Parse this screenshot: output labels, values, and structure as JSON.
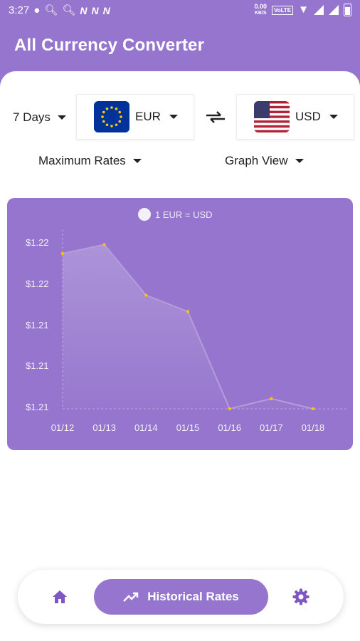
{
  "status_bar": {
    "time": "3:27",
    "net_speed_value": "0.00",
    "net_speed_unit": "KB/S",
    "volte": "VoLTE"
  },
  "app": {
    "title": "All Currency Converter"
  },
  "controls": {
    "period": "7 Days",
    "from_currency": "EUR",
    "to_currency": "USD",
    "rate_type": "Maximum Rates",
    "view_mode": "Graph View"
  },
  "chart_data": {
    "type": "line",
    "legend": "1 EUR = USD",
    "categories": [
      "01/12",
      "01/13",
      "01/14",
      "01/15",
      "01/16",
      "01/17",
      "01/18"
    ],
    "values": [
      1.2191,
      1.2198,
      1.2158,
      1.2145,
      1.2068,
      1.2076,
      1.2068
    ],
    "y_tick_labels": [
      "$1.22",
      "$1.22",
      "$1.21",
      "$1.21",
      "$1.21"
    ],
    "y_tick_values": [
      1.22,
      1.2175,
      1.215,
      1.2125,
      1.21
    ],
    "ylim": [
      1.2068,
      1.22
    ],
    "line_color": "#b39ddb",
    "point_color": "#ffc107"
  },
  "bottom_nav": {
    "active_label": "Historical Rates"
  }
}
